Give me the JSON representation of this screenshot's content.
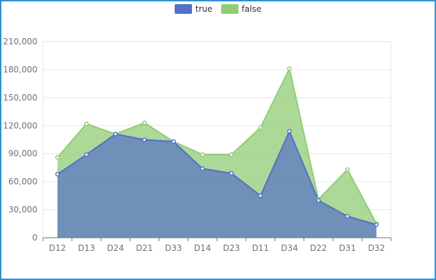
{
  "chart_data": {
    "type": "area",
    "categories": [
      "D12",
      "D13",
      "D24",
      "D21",
      "D33",
      "D14",
      "D23",
      "D11",
      "D34",
      "D22",
      "D31",
      "D32"
    ],
    "series": [
      {
        "name": "true",
        "color": "#5470c6",
        "values": [
          68000,
          89000,
          111000,
          105000,
          103000,
          74000,
          69000,
          45000,
          114000,
          40000,
          23000,
          14000
        ]
      },
      {
        "name": "false",
        "color": "#91cc75",
        "values": [
          86000,
          122000,
          111000,
          123000,
          103000,
          89000,
          89000,
          118000,
          181000,
          41000,
          73000,
          15000
        ]
      }
    ],
    "ylim": [
      0,
      210000
    ],
    "yticks": [
      "0",
      "30,000",
      "60,000",
      "90,000",
      "120,000",
      "150,000",
      "180,000",
      "210,000"
    ],
    "grid": true,
    "legend_position": "top-center"
  }
}
